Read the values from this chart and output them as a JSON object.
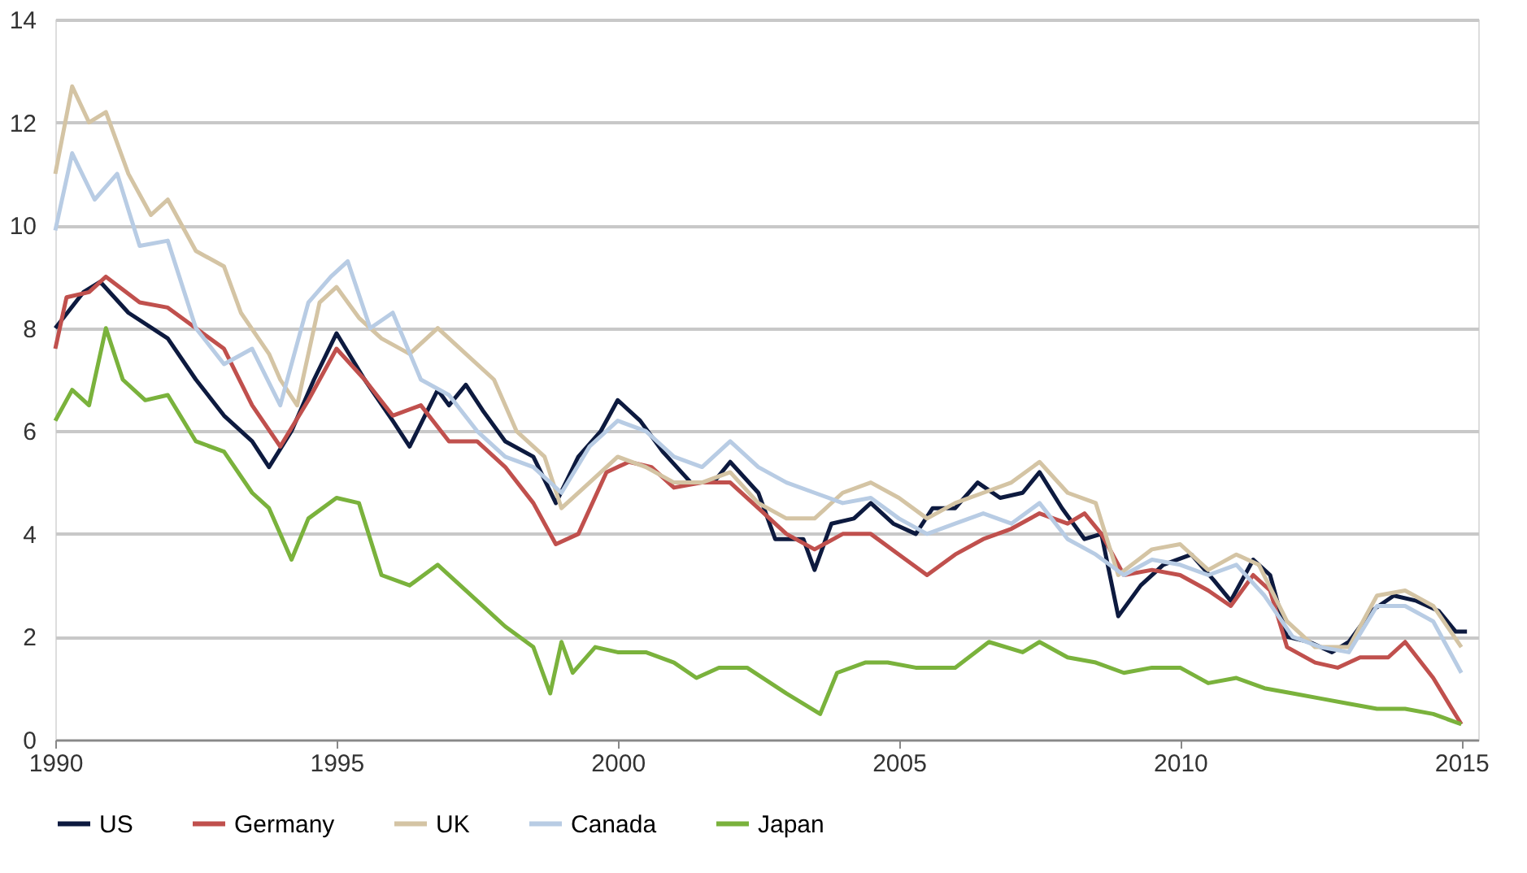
{
  "chart_data": {
    "type": "line",
    "xlim": [
      1990,
      2015.3
    ],
    "xticks": [
      1990,
      1995,
      2000,
      2005,
      2010,
      2015
    ],
    "ylim": [
      0,
      14
    ],
    "yticks": [
      0,
      2,
      4,
      6,
      8,
      10,
      12,
      14
    ],
    "grid": "y",
    "legend": "bottom",
    "line_style": "solid",
    "marker": "none",
    "series": [
      {
        "name": "US",
        "color": "#0d1a3f",
        "x": [
          1990,
          1990.5,
          1990.8,
          1991.3,
          1992,
          1992.5,
          1993,
          1993.5,
          1993.8,
          1994.2,
          1994.6,
          1995,
          1995.5,
          1996,
          1996.3,
          1996.8,
          1997,
          1997.3,
          1997.6,
          1998,
          1998.5,
          1998.9,
          1999.3,
          1999.7,
          2000,
          2000.4,
          2000.8,
          2001.3,
          2001.7,
          2002,
          2002.5,
          2002.8,
          2003.3,
          2003.5,
          2003.8,
          2004.2,
          2004.5,
          2004.9,
          2005.3,
          2005.6,
          2006,
          2006.4,
          2006.8,
          2007.2,
          2007.5,
          2007.9,
          2008.3,
          2008.6,
          2008.9,
          2009.3,
          2009.7,
          2010.2,
          2010.6,
          2010.9,
          2011.3,
          2011.6,
          2011.9,
          2012.3,
          2012.7,
          2013,
          2013.4,
          2013.8,
          2014.2,
          2014.6,
          2014.9,
          2015.1
        ],
        "values": [
          8.0,
          8.7,
          8.9,
          8.3,
          7.8,
          7.0,
          6.3,
          5.8,
          5.3,
          6.0,
          7.0,
          7.9,
          7.0,
          6.2,
          5.7,
          6.8,
          6.5,
          6.9,
          6.4,
          5.8,
          5.5,
          4.6,
          5.5,
          6.0,
          6.6,
          6.2,
          5.6,
          5.0,
          5.0,
          5.4,
          4.8,
          3.9,
          3.9,
          3.3,
          4.2,
          4.3,
          4.6,
          4.2,
          4.0,
          4.5,
          4.5,
          5.0,
          4.7,
          4.8,
          5.2,
          4.5,
          3.9,
          4.0,
          2.4,
          3.0,
          3.4,
          3.6,
          3.1,
          2.7,
          3.5,
          3.2,
          2.0,
          1.9,
          1.7,
          1.9,
          2.5,
          2.8,
          2.7,
          2.5,
          2.1,
          2.1
        ]
      },
      {
        "name": "Germany",
        "color": "#c0504d",
        "x": [
          1990,
          1990.2,
          1990.6,
          1990.9,
          1991.5,
          1992,
          1992.5,
          1993,
          1993.5,
          1994,
          1994.5,
          1995,
          1995.5,
          1996,
          1996.5,
          1997,
          1997.5,
          1998,
          1998.5,
          1998.9,
          1999.3,
          1999.8,
          2000.2,
          2000.6,
          2001,
          2001.5,
          2002,
          2002.5,
          2003,
          2003.5,
          2004,
          2004.5,
          2005,
          2005.5,
          2006,
          2006.5,
          2007,
          2007.5,
          2008,
          2008.3,
          2008.6,
          2009,
          2009.5,
          2010,
          2010.5,
          2010.9,
          2011.3,
          2011.6,
          2011.9,
          2012.4,
          2012.8,
          2013.2,
          2013.7,
          2014,
          2014.5,
          2015
        ],
        "values": [
          7.6,
          8.6,
          8.7,
          9.0,
          8.5,
          8.4,
          8.0,
          7.6,
          6.5,
          5.7,
          6.6,
          7.6,
          7.0,
          6.3,
          6.5,
          5.8,
          5.8,
          5.3,
          4.6,
          3.8,
          4.0,
          5.2,
          5.4,
          5.3,
          4.9,
          5.0,
          5.0,
          4.5,
          4.0,
          3.7,
          4.0,
          4.0,
          3.6,
          3.2,
          3.6,
          3.9,
          4.1,
          4.4,
          4.2,
          4.4,
          4.0,
          3.2,
          3.3,
          3.2,
          2.9,
          2.6,
          3.2,
          2.9,
          1.8,
          1.5,
          1.4,
          1.6,
          1.6,
          1.9,
          1.2,
          0.3
        ]
      },
      {
        "name": "UK",
        "color": "#d4c4a4",
        "x": [
          1990,
          1990.3,
          1990.6,
          1990.9,
          1991.3,
          1991.7,
          1992,
          1992.5,
          1993,
          1993.3,
          1993.8,
          1994,
          1994.3,
          1994.7,
          1995,
          1995.4,
          1995.8,
          1996.3,
          1996.8,
          1997.3,
          1997.8,
          1998.2,
          1998.7,
          1999,
          1999.5,
          2000,
          2000.5,
          2001,
          2001.5,
          2002,
          2002.5,
          2003,
          2003.5,
          2004,
          2004.5,
          2005,
          2005.5,
          2006,
          2006.5,
          2007,
          2007.5,
          2008,
          2008.5,
          2008.9,
          2009.5,
          2010,
          2010.5,
          2011,
          2011.4,
          2011.9,
          2012.4,
          2013,
          2013.5,
          2014,
          2014.5,
          2015
        ],
        "values": [
          11.0,
          12.7,
          12.0,
          12.2,
          11.0,
          10.2,
          10.5,
          9.5,
          9.2,
          8.3,
          7.5,
          7.0,
          6.5,
          8.5,
          8.8,
          8.2,
          7.8,
          7.5,
          8.0,
          7.5,
          7.0,
          6.0,
          5.5,
          4.5,
          5.0,
          5.5,
          5.3,
          5.0,
          5.0,
          5.2,
          4.6,
          4.3,
          4.3,
          4.8,
          5.0,
          4.7,
          4.3,
          4.6,
          4.8,
          5.0,
          5.4,
          4.8,
          4.6,
          3.2,
          3.7,
          3.8,
          3.3,
          3.6,
          3.4,
          2.3,
          1.8,
          1.8,
          2.8,
          2.9,
          2.6,
          1.8
        ]
      },
      {
        "name": "Canada",
        "color": "#b8cce4",
        "x": [
          1990,
          1990.3,
          1990.7,
          1991.1,
          1991.5,
          1992,
          1992.5,
          1993,
          1993.5,
          1994,
          1994.5,
          1994.9,
          1995.2,
          1995.6,
          1996,
          1996.5,
          1997,
          1997.5,
          1998,
          1998.5,
          1999,
          1999.5,
          2000,
          2000.5,
          2001,
          2001.5,
          2002,
          2002.5,
          2003,
          2003.5,
          2004,
          2004.5,
          2005,
          2005.5,
          2006,
          2006.5,
          2007,
          2007.5,
          2008,
          2008.5,
          2009,
          2009.5,
          2010,
          2010.5,
          2011,
          2011.5,
          2012,
          2012.5,
          2013,
          2013.5,
          2014,
          2014.5,
          2015
        ],
        "values": [
          9.9,
          11.4,
          10.5,
          11.0,
          9.6,
          9.7,
          8.0,
          7.3,
          7.6,
          6.5,
          8.5,
          9.0,
          9.3,
          8.0,
          8.3,
          7.0,
          6.7,
          6.0,
          5.5,
          5.3,
          4.8,
          5.7,
          6.2,
          6.0,
          5.5,
          5.3,
          5.8,
          5.3,
          5.0,
          4.8,
          4.6,
          4.7,
          4.3,
          4.0,
          4.2,
          4.4,
          4.2,
          4.6,
          3.9,
          3.6,
          3.2,
          3.5,
          3.4,
          3.2,
          3.4,
          2.8,
          2.0,
          1.8,
          1.7,
          2.6,
          2.6,
          2.3,
          1.3
        ]
      },
      {
        "name": "Japan",
        "color": "#7ab23c",
        "x": [
          1990,
          1990.3,
          1990.6,
          1990.9,
          1991.2,
          1991.6,
          1992,
          1992.5,
          1993,
          1993.5,
          1993.8,
          1994,
          1994.2,
          1994.5,
          1995,
          1995.4,
          1995.8,
          1996.3,
          1996.8,
          1997.2,
          1997.6,
          1998,
          1998.5,
          1998.8,
          1999,
          1999.2,
          1999.6,
          2000,
          2000.5,
          2001,
          2001.4,
          2001.8,
          2002.3,
          2003,
          2003.6,
          2003.9,
          2004.4,
          2004.8,
          2005.3,
          2006,
          2006.6,
          2007.2,
          2007.5,
          2008,
          2008.5,
          2009,
          2009.5,
          2010,
          2010.5,
          2011,
          2011.5,
          2012,
          2012.5,
          2013,
          2013.5,
          2014,
          2014.5,
          2015
        ],
        "values": [
          6.2,
          6.8,
          6.5,
          8.0,
          7.0,
          6.6,
          6.7,
          5.8,
          5.6,
          4.8,
          4.5,
          4.0,
          3.5,
          4.3,
          4.7,
          4.6,
          3.2,
          3.0,
          3.4,
          3.0,
          2.6,
          2.2,
          1.8,
          0.9,
          1.9,
          1.3,
          1.8,
          1.7,
          1.7,
          1.5,
          1.2,
          1.4,
          1.4,
          0.9,
          0.5,
          1.3,
          1.5,
          1.5,
          1.4,
          1.4,
          1.9,
          1.7,
          1.9,
          1.6,
          1.5,
          1.3,
          1.4,
          1.4,
          1.1,
          1.2,
          1.0,
          0.9,
          0.8,
          0.7,
          0.6,
          0.6,
          0.5,
          0.3
        ]
      }
    ]
  }
}
